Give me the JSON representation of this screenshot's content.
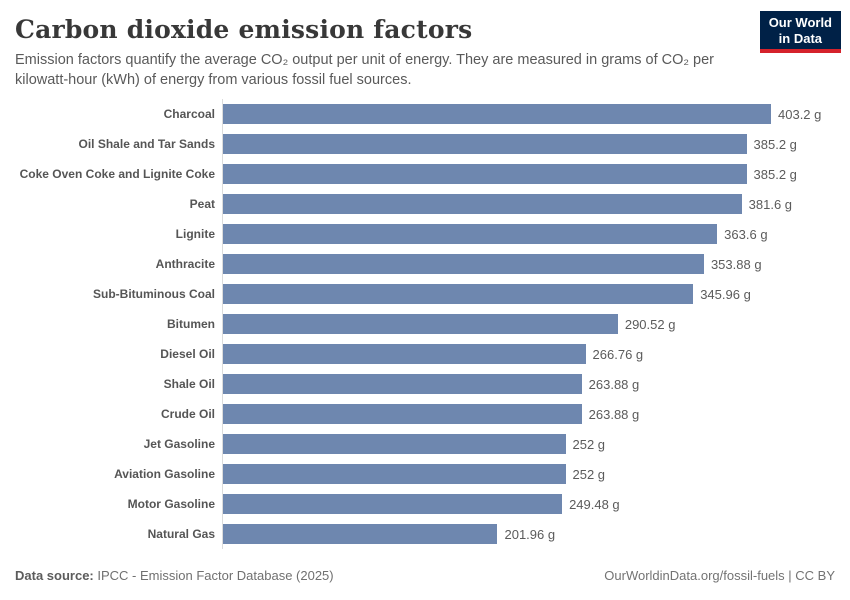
{
  "header": {
    "title": "Carbon dioxide emission factors",
    "subtitle": "Emission factors quantify the average CO₂ output per unit of energy. They are measured in grams of CO₂ per kilowatt-hour (kWh) of energy from various fossil fuel sources.",
    "logo": {
      "line1": "Our World",
      "line2": "in Data"
    }
  },
  "chart_data": {
    "type": "bar",
    "orientation": "horizontal",
    "title": "Carbon dioxide emission factors",
    "unit": "g",
    "xlim": [
      0,
      403.2
    ],
    "grid": false,
    "legend": "none",
    "bar_color": "#6e87af",
    "categories": [
      "Charcoal",
      "Oil Shale and Tar Sands",
      "Coke Oven Coke and Lignite Coke",
      "Peat",
      "Lignite",
      "Anthracite",
      "Sub-Bituminous Coal",
      "Bitumen",
      "Diesel Oil",
      "Shale Oil",
      "Crude Oil",
      "Jet Gasoline",
      "Aviation Gasoline",
      "Motor Gasoline",
      "Natural Gas"
    ],
    "values": [
      403.2,
      385.2,
      385.2,
      381.6,
      363.6,
      353.88,
      345.96,
      290.52,
      266.76,
      263.88,
      263.88,
      252,
      252,
      249.48,
      201.96
    ],
    "value_labels": [
      "403.2 g",
      "385.2 g",
      "385.2 g",
      "381.6 g",
      "363.6 g",
      "353.88 g",
      "345.96 g",
      "290.52 g",
      "266.76 g",
      "263.88 g",
      "263.88 g",
      "252 g",
      "252 g",
      "249.48 g",
      "201.96 g"
    ]
  },
  "footer": {
    "source_label": "Data source:",
    "source_text": " IPCC - Emission Factor Database (2025)",
    "right_text": "OurWorldinData.org/fossil-fuels | CC BY"
  },
  "colors": {
    "bar": "#6e87af",
    "axis_line": "#dcdcdc",
    "logo_bg": "#002147",
    "logo_red": "#d5222b",
    "title_text": "#383838",
    "body_text": "#5a5a5a"
  }
}
